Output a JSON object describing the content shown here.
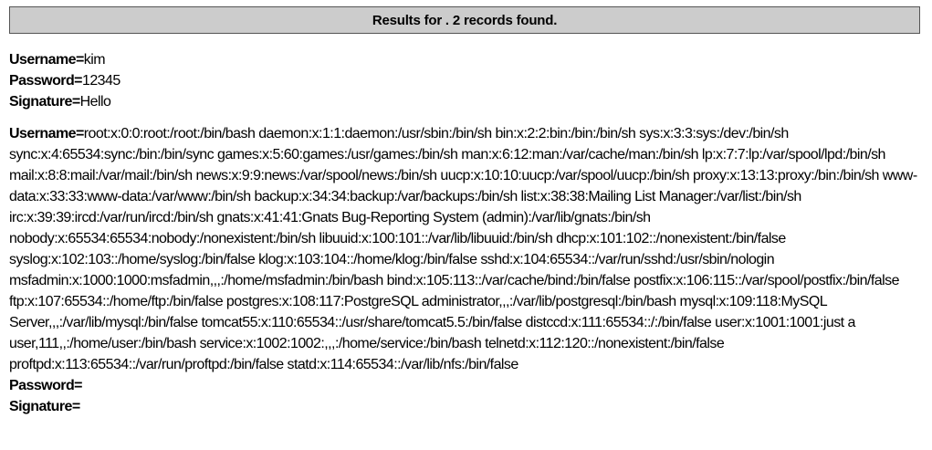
{
  "header": {
    "title": "Results for . 2 records found."
  },
  "labels": {
    "username": "Username=",
    "password": "Password=",
    "signature": "Signature="
  },
  "records": [
    {
      "username": "kim",
      "password": "12345",
      "signature": "Hello"
    },
    {
      "username": "root:x:0:0:root:/root:/bin/bash daemon:x:1:1:daemon:/usr/sbin:/bin/sh bin:x:2:2:bin:/bin:/bin/sh sys:x:3:3:sys:/dev:/bin/sh sync:x:4:65534:sync:/bin:/bin/sync games:x:5:60:games:/usr/games:/bin/sh man:x:6:12:man:/var/cache/man:/bin/sh lp:x:7:7:lp:/var/spool/lpd:/bin/sh mail:x:8:8:mail:/var/mail:/bin/sh news:x:9:9:news:/var/spool/news:/bin/sh uucp:x:10:10:uucp:/var/spool/uucp:/bin/sh proxy:x:13:13:proxy:/bin:/bin/sh www-data:x:33:33:www-data:/var/www:/bin/sh backup:x:34:34:backup:/var/backups:/bin/sh list:x:38:38:Mailing List Manager:/var/list:/bin/sh irc:x:39:39:ircd:/var/run/ircd:/bin/sh gnats:x:41:41:Gnats Bug-Reporting System (admin):/var/lib/gnats:/bin/sh nobody:x:65534:65534:nobody:/nonexistent:/bin/sh libuuid:x:100:101::/var/lib/libuuid:/bin/sh dhcp:x:101:102::/nonexistent:/bin/false syslog:x:102:103::/home/syslog:/bin/false klog:x:103:104::/home/klog:/bin/false sshd:x:104:65534::/var/run/sshd:/usr/sbin/nologin msfadmin:x:1000:1000:msfadmin,,,:/home/msfadmin:/bin/bash bind:x:105:113::/var/cache/bind:/bin/false postfix:x:106:115::/var/spool/postfix:/bin/false ftp:x:107:65534::/home/ftp:/bin/false postgres:x:108:117:PostgreSQL administrator,,,:/var/lib/postgresql:/bin/bash mysql:x:109:118:MySQL Server,,,:/var/lib/mysql:/bin/false tomcat55:x:110:65534::/usr/share/tomcat5.5:/bin/false distccd:x:111:65534::/:/bin/false user:x:1001:1001:just a user,111,,:/home/user:/bin/bash service:x:1002:1002:,,,:/home/service:/bin/bash telnetd:x:112:120::/nonexistent:/bin/false proftpd:x:113:65534::/var/run/proftpd:/bin/false statd:x:114:65534::/var/lib/nfs:/bin/false",
      "password": "",
      "signature": ""
    }
  ]
}
